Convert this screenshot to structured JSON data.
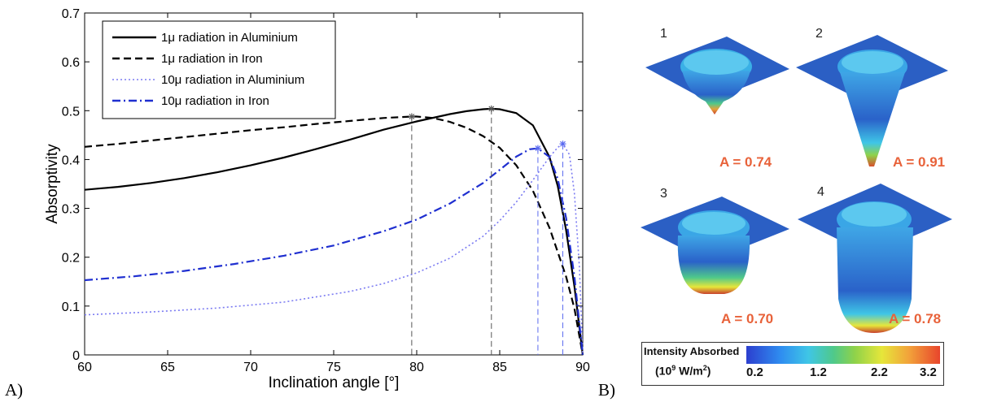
{
  "chart_data": {
    "type": "line",
    "xlabel": "Inclination angle [°]",
    "ylabel": "Absorptivity",
    "xlim": [
      60,
      90
    ],
    "ylim": [
      0,
      0.7
    ],
    "xticks": [
      "60",
      "65",
      "70",
      "75",
      "80",
      "85",
      "90"
    ],
    "yticks": [
      "0",
      "0.1",
      "0.2",
      "0.3",
      "0.4",
      "0.5",
      "0.6",
      "0.7"
    ],
    "grid": false,
    "legend_position": "top-left",
    "series": [
      {
        "name": "1μ radiation in Aluminium",
        "color": "#000000",
        "style": "solid",
        "x": [
          60,
          62,
          64,
          66,
          68,
          70,
          72,
          74,
          76,
          78,
          80,
          82,
          83,
          84,
          84.5,
          85,
          86,
          87,
          88,
          88.5,
          89,
          89.5,
          90
        ],
        "y": [
          0.338,
          0.344,
          0.352,
          0.362,
          0.374,
          0.388,
          0.404,
          0.422,
          0.441,
          0.461,
          0.478,
          0.493,
          0.499,
          0.503,
          0.504,
          0.503,
          0.495,
          0.47,
          0.405,
          0.345,
          0.255,
          0.14,
          0
        ]
      },
      {
        "name": "1μ radiation in Iron",
        "color": "#000000",
        "style": "dashed",
        "x": [
          60,
          62,
          64,
          66,
          68,
          70,
          72,
          74,
          76,
          78,
          79.7,
          80,
          81,
          82,
          83,
          84,
          85,
          86,
          87,
          88,
          89,
          89.5,
          90
        ],
        "y": [
          0.426,
          0.432,
          0.439,
          0.446,
          0.453,
          0.46,
          0.466,
          0.473,
          0.479,
          0.485,
          0.488,
          0.488,
          0.485,
          0.477,
          0.465,
          0.448,
          0.424,
          0.388,
          0.336,
          0.26,
          0.16,
          0.095,
          0
        ]
      },
      {
        "name": "10μ radiation in Aluminium",
        "color": "#7b7bf2",
        "style": "dotted",
        "x": [
          60,
          64,
          68,
          72,
          76,
          78,
          80,
          82,
          84,
          85,
          86,
          87,
          88,
          88.5,
          88.8,
          89.2,
          89.5,
          89.8,
          90
        ],
        "y": [
          0.082,
          0.088,
          0.096,
          0.108,
          0.13,
          0.146,
          0.168,
          0.198,
          0.243,
          0.275,
          0.313,
          0.358,
          0.405,
          0.425,
          0.432,
          0.41,
          0.33,
          0.18,
          0
        ]
      },
      {
        "name": "10μ radiation in Iron",
        "color": "#1f2fd0",
        "style": "dashdot",
        "x": [
          60,
          63,
          66,
          69,
          72,
          75,
          78,
          80,
          82,
          84,
          85,
          86,
          86.8,
          87.3,
          88,
          88.5,
          89,
          89.5,
          90
        ],
        "y": [
          0.153,
          0.161,
          0.172,
          0.186,
          0.203,
          0.224,
          0.253,
          0.277,
          0.31,
          0.352,
          0.379,
          0.406,
          0.421,
          0.423,
          0.405,
          0.36,
          0.28,
          0.16,
          0
        ]
      }
    ],
    "markers": [
      {
        "x": 79.7,
        "y": 0.488,
        "color": "#555555"
      },
      {
        "x": 84.5,
        "y": 0.504,
        "color": "#555555"
      },
      {
        "x": 87.3,
        "y": 0.423,
        "color": "#5b6bf0"
      },
      {
        "x": 88.8,
        "y": 0.432,
        "color": "#5b6bf0"
      }
    ]
  },
  "panel_labels": {
    "a": "A)",
    "b": "B)"
  },
  "panel_b": {
    "cells": [
      {
        "number": "1",
        "a_label": "A = 0.74"
      },
      {
        "number": "2",
        "a_label": "A = 0.91"
      },
      {
        "number": "3",
        "a_label": "A = 0.70"
      },
      {
        "number": "4",
        "a_label": "A = 0.78"
      }
    ],
    "colorbar": {
      "title": "Intensity Absorbed",
      "unit_prefix": "(10",
      "unit_exp": "9",
      "unit_suffix": " W/m",
      "unit_exp2": "2",
      "unit_close": ")",
      "ticks": [
        "0.2",
        "1.2",
        "2.2",
        "3.2"
      ]
    }
  }
}
